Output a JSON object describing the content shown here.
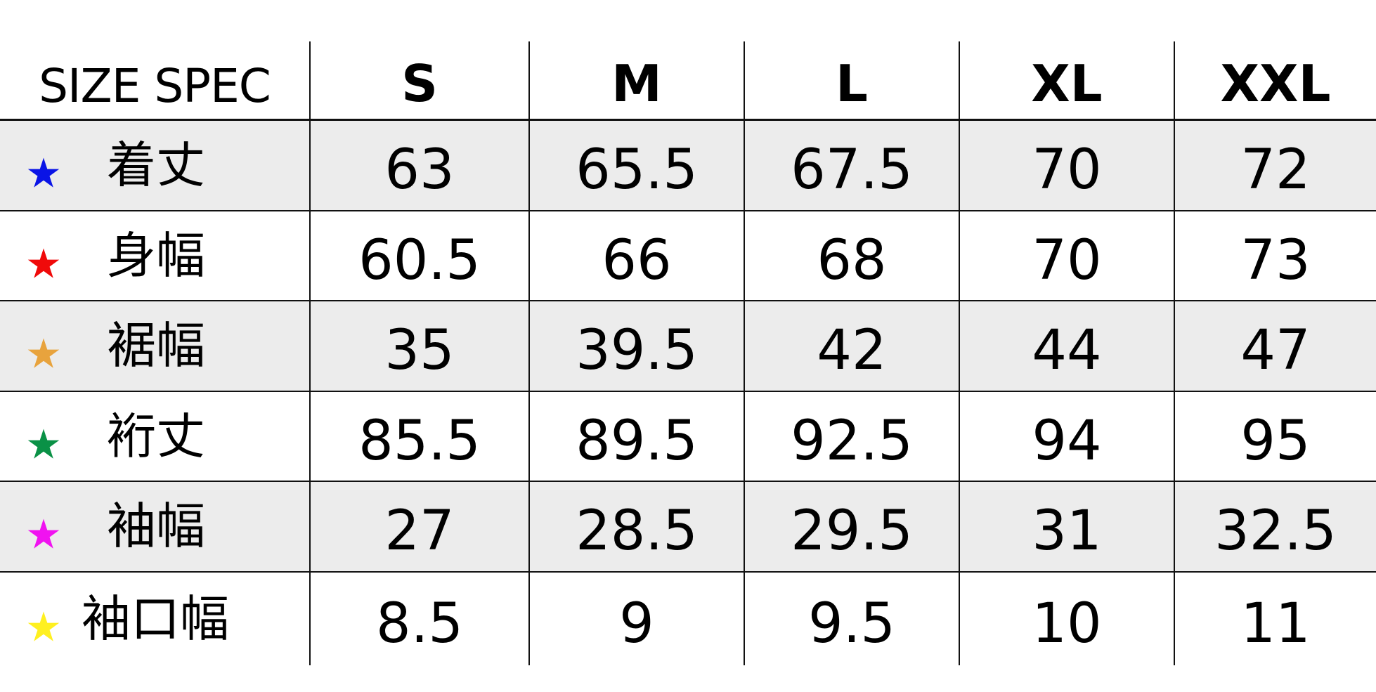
{
  "header": {
    "title": "SIZE SPEC",
    "sizes": [
      "S",
      "M",
      "L",
      "XL",
      "XXL"
    ]
  },
  "rows": [
    {
      "label": "着丈",
      "star": "★",
      "star_color": "#0a14e6",
      "values": [
        "63",
        "65.5",
        "67.5",
        "70",
        "72"
      ]
    },
    {
      "label": "身幅",
      "star": "★",
      "star_color": "#f00a0a",
      "values": [
        "60.5",
        "66",
        "68",
        "70",
        "73"
      ]
    },
    {
      "label": "裾幅",
      "star": "★",
      "star_color": "#e8a33d",
      "values": [
        "35",
        "39.5",
        "42",
        "44",
        "47"
      ]
    },
    {
      "label": "裄丈",
      "star": "★",
      "star_color": "#0a9146",
      "values": [
        "85.5",
        "89.5",
        "92.5",
        "94",
        "95"
      ]
    },
    {
      "label": "袖幅",
      "star": "★",
      "star_color": "#f012f0",
      "values": [
        "27",
        "28.5",
        "29.5",
        "31",
        "32.5"
      ]
    },
    {
      "label": "袖口幅",
      "star": "★",
      "star_color": "#fff020",
      "values": [
        "8.5",
        "9",
        "9.5",
        "10",
        "11"
      ]
    }
  ],
  "colors": {
    "shade": "#ececec",
    "line": "#111111"
  }
}
